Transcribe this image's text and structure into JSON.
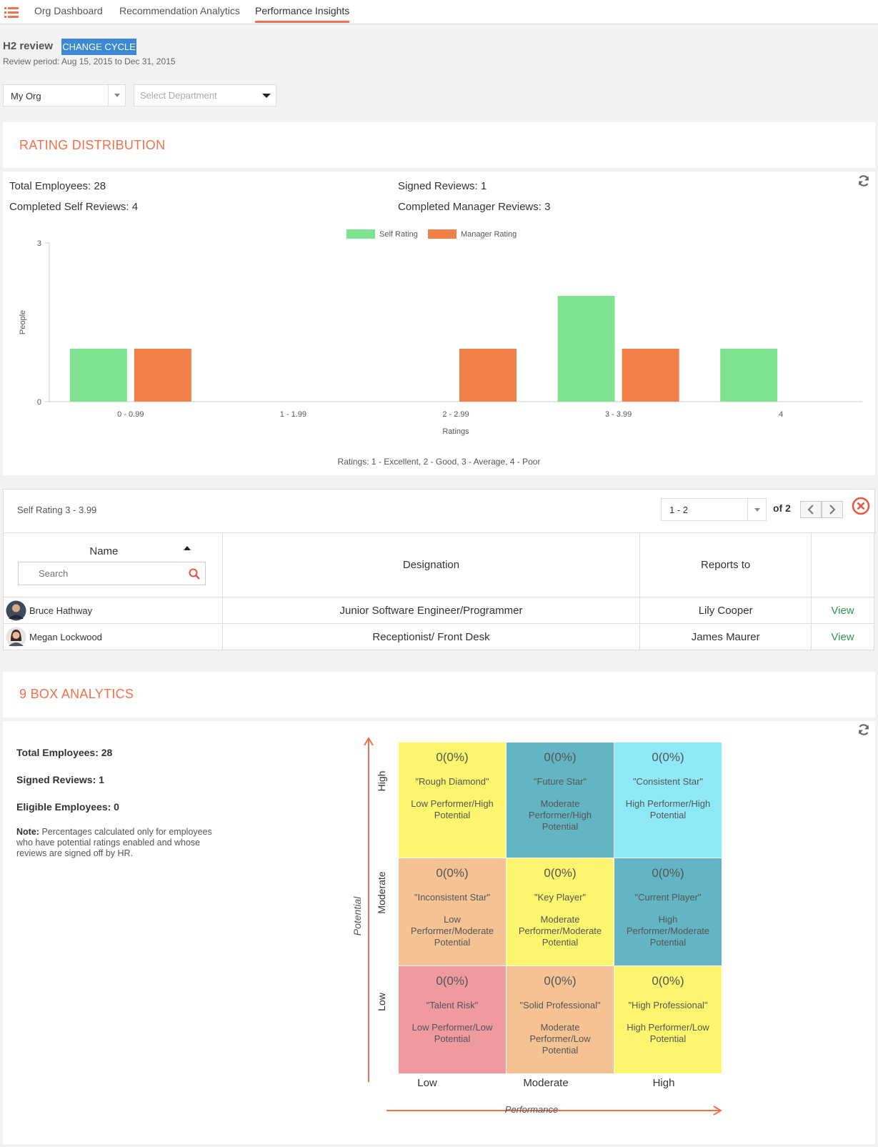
{
  "nav": {
    "tabs": [
      {
        "label": "Org Dashboard"
      },
      {
        "label": "Recommendation Analytics"
      },
      {
        "label": "Performance Insights"
      }
    ]
  },
  "review": {
    "title": "H2 review",
    "change_cycle_label": "CHANGE CYCLE",
    "period": "Review period: Aug 15, 2015 to Dec 31, 2015"
  },
  "filters": {
    "org_value": "My Org",
    "department_placeholder": "Select Department"
  },
  "rating_distribution": {
    "title": "RATING DISTRIBUTION",
    "total_employees": "Total Employees: 28",
    "signed_reviews": "Signed Reviews: 1",
    "completed_self": "Completed Self Reviews: 4",
    "completed_manager": "Completed Manager Reviews: 3",
    "ratings_note": "Ratings: 1 - Excellent, 2 - Good, 3 - Average, 4 - Poor"
  },
  "chart_data": {
    "type": "bar",
    "categories": [
      "0 - 0.99",
      "1 - 1.99",
      "2 - 2.99",
      "3 - 3.99",
      "4"
    ],
    "series": [
      {
        "name": "Self Rating",
        "color": "#7de38e",
        "values": [
          1,
          0,
          0,
          2,
          1
        ]
      },
      {
        "name": "Manager Rating",
        "color": "#f07f48",
        "values": [
          1,
          0,
          1,
          1,
          0
        ]
      }
    ],
    "xlabel": "Ratings",
    "ylabel": "People",
    "ylim": [
      0,
      3
    ],
    "yticks": [
      "0",
      "3"
    ],
    "legend": "top-center",
    "grid": false
  },
  "drilldown": {
    "title": "Self Rating 3 - 3.99",
    "pager_value": "1 - 2",
    "pager_of": "of 2",
    "columns": {
      "name": "Name",
      "designation": "Designation",
      "reports_to": "Reports to"
    },
    "search_placeholder": "Search",
    "rows": [
      {
        "name": "Bruce Hathway",
        "designation": "Junior Software Engineer/Programmer",
        "reports_to": "Lily Cooper",
        "action": "View"
      },
      {
        "name": "Megan Lockwood",
        "designation": "Receptionist/ Front Desk",
        "reports_to": "James Maurer",
        "action": "View"
      }
    ]
  },
  "nine_box": {
    "title": "9 BOX ANALYTICS",
    "total_employees": "Total Employees: 28",
    "signed_reviews": "Signed Reviews: 1",
    "eligible_employees": "Eligible Employees: 0",
    "note_label": "Note:",
    "note_text": "Percentages calculated only for employees who have potential ratings enabled and whose reviews are signed off by HR.",
    "y_axis_label": "Potential",
    "x_axis_label": "Performance",
    "rows": [
      "High",
      "Moderate",
      "Low"
    ],
    "cols": [
      "Low",
      "Moderate",
      "High"
    ],
    "cells": [
      {
        "count": "0(0%)",
        "name": "\"Rough Diamond\"",
        "desc": "Low Performer/High Potential",
        "color": "#fdf56e"
      },
      {
        "count": "0(0%)",
        "name": "\"Future Star\"",
        "desc": "Moderate Performer/High Potential",
        "color": "#64b5c3"
      },
      {
        "count": "0(0%)",
        "name": "\"Consistent Star\"",
        "desc": "High Performer/High Potential",
        "color": "#8fe8f5"
      },
      {
        "count": "0(0%)",
        "name": "\"Inconsistent Star\"",
        "desc": "Low Performer/Moderate Potential",
        "color": "#f5c393"
      },
      {
        "count": "0(0%)",
        "name": "\"Key Player\"",
        "desc": "Moderate Performer/Moderate Potential",
        "color": "#fdf56e"
      },
      {
        "count": "0(0%)",
        "name": "\"Current Player\"",
        "desc": "High Performer/Moderate Potential",
        "color": "#64b5c3"
      },
      {
        "count": "0(0%)",
        "name": "\"Talent Risk\"",
        "desc": "Low Performer/Low Potential",
        "color": "#ee9aa0"
      },
      {
        "count": "0(0%)",
        "name": "\"Solid Professional\"",
        "desc": "Moderate Performer/Low Potential",
        "color": "#f5c393"
      },
      {
        "count": "0(0%)",
        "name": "\"High Professional\"",
        "desc": "High Performer/Low Potential",
        "color": "#fdf56e"
      }
    ]
  }
}
